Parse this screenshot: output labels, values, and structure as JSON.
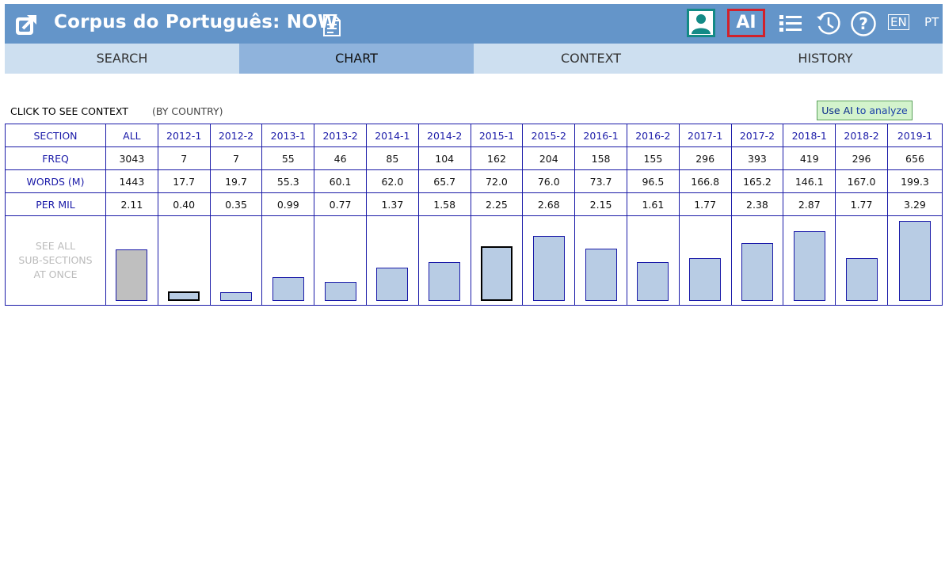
{
  "app": {
    "title": "Corpus do Português: NOW"
  },
  "toolbar": {
    "ai_label": "AI",
    "lang_en": "EN",
    "lang_pt": "PT"
  },
  "tabs": [
    {
      "label": "SEARCH",
      "active": false
    },
    {
      "label": "CHART",
      "active": true
    },
    {
      "label": "CONTEXT",
      "active": false
    },
    {
      "label": "HISTORY",
      "active": false
    }
  ],
  "chart": {
    "click_label": "CLICK TO SEE CONTEXT",
    "country_label": "(BY COUNTRY)",
    "ai_button": {
      "prefix": "Use AI",
      "suffix": " to analyze"
    },
    "see_all": [
      "SEE ALL",
      "SUB-SECTIONS",
      "AT ONCE"
    ]
  },
  "chart_data": {
    "type": "table",
    "row_labels": [
      "SECTION",
      "FREQ",
      "WORDS (M)",
      "PER MIL"
    ],
    "sections": [
      "ALL",
      "2012-1",
      "2012-2",
      "2013-1",
      "2013-2",
      "2014-1",
      "2014-2",
      "2015-1",
      "2015-2",
      "2016-1",
      "2016-2",
      "2017-1",
      "2017-2",
      "2018-1",
      "2018-2",
      "2019-1"
    ],
    "freq": [
      "3043",
      "7",
      "7",
      "55",
      "46",
      "85",
      "104",
      "162",
      "204",
      "158",
      "155",
      "296",
      "393",
      "419",
      "296",
      "656"
    ],
    "words_m": [
      "1443",
      "17.7",
      "19.7",
      "55.3",
      "60.1",
      "62.0",
      "65.7",
      "72.0",
      "76.0",
      "73.7",
      "96.5",
      "166.8",
      "165.2",
      "146.1",
      "167.0",
      "199.3"
    ],
    "per_mil": [
      "2.11",
      "0.40",
      "0.35",
      "0.99",
      "0.77",
      "1.37",
      "1.58",
      "2.25",
      "2.68",
      "2.15",
      "1.61",
      "1.77",
      "2.38",
      "2.87",
      "1.77",
      "3.29"
    ],
    "highlighted": [
      "2012-1",
      "2015-1"
    ]
  },
  "colors": {
    "header": "#6495c9",
    "tab": "#cddff0",
    "tab_active": "#8fb3dc",
    "bar": "#b8cce4",
    "bar_all": "#bfbfbf",
    "grid": "#1a1aa8"
  }
}
